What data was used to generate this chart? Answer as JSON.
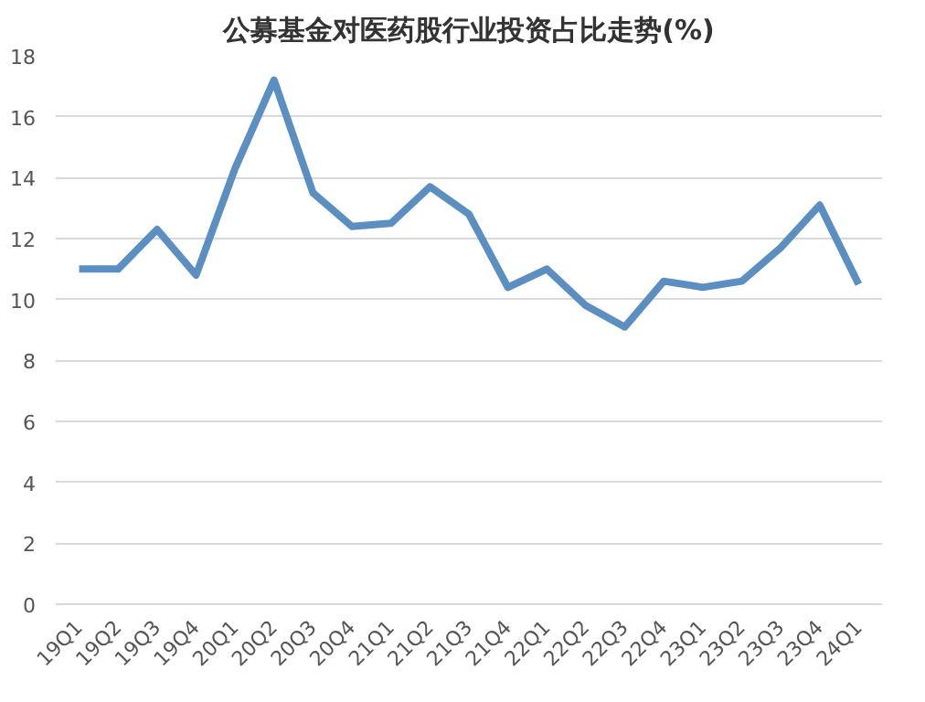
{
  "chart_data": {
    "type": "line",
    "title": "公募基金对医药股行业投资占比走势(%)",
    "categories": [
      "19Q1",
      "19Q2",
      "19Q3",
      "19Q4",
      "20Q1",
      "20Q2",
      "20Q3",
      "20Q4",
      "21Q1",
      "21Q2",
      "21Q3",
      "21Q4",
      "22Q1",
      "22Q2",
      "22Q3",
      "22Q4",
      "23Q1",
      "23Q2",
      "23Q3",
      "23Q4",
      "24Q1"
    ],
    "series": [
      {
        "color": "#5b8fc2",
        "values": [
          11.0,
          11.0,
          12.3,
          10.8,
          14.3,
          17.2,
          13.5,
          12.4,
          12.5,
          13.7,
          12.8,
          10.4,
          11.0,
          9.8,
          9.1,
          10.6,
          10.4,
          10.6,
          11.7,
          13.1,
          10.5
        ]
      }
    ],
    "ylim": [
      0,
      18
    ],
    "yticks": [
      0,
      2,
      4,
      6,
      8,
      10,
      12,
      14,
      16,
      18
    ],
    "grid": "y",
    "marker": "none",
    "line_style": "solid"
  }
}
